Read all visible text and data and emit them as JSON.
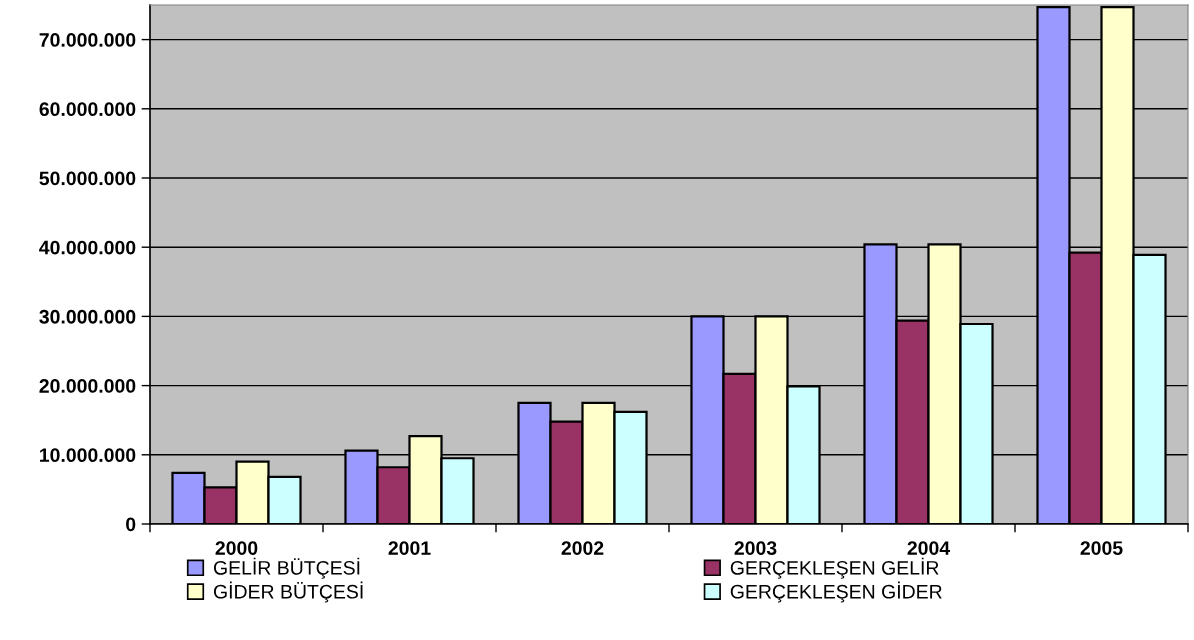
{
  "chart_data": {
    "type": "bar",
    "categories": [
      "2000",
      "2001",
      "2002",
      "2003",
      "2004",
      "2005"
    ],
    "series": [
      {
        "name": "GELİR BÜTÇESİ",
        "color": "#9999ff",
        "values": [
          7400000,
          10600000,
          17500000,
          30000000,
          40400000,
          74700000
        ]
      },
      {
        "name": "GERÇEKLEŞEN GELİR",
        "color": "#993366",
        "values": [
          5300000,
          8200000,
          14800000,
          21700000,
          29400000,
          39200000
        ]
      },
      {
        "name": "GİDER BÜTÇESİ",
        "color": "#ffffcc",
        "values": [
          9000000,
          12700000,
          17500000,
          30000000,
          40400000,
          74700000
        ]
      },
      {
        "name": "GERÇEKLEŞEN GİDER",
        "color": "#ccffff",
        "values": [
          6800000,
          9500000,
          16200000,
          19900000,
          28900000,
          38900000
        ]
      }
    ],
    "ylim": [
      0,
      75000000
    ],
    "yticks": [
      0,
      {
        "value": 10000000,
        "label": "10.000.000"
      },
      {
        "value": 20000000,
        "label": "20.000.000"
      },
      {
        "value": 30000000,
        "label": "30.000.000"
      },
      {
        "value": 40000000,
        "label": "40.000.000"
      },
      {
        "value": 50000000,
        "label": "50.000.000"
      },
      {
        "value": 60000000,
        "label": "60.000.000"
      },
      {
        "value": 70000000,
        "label": "70.000.000"
      }
    ],
    "grid": "y",
    "legend": "bottom"
  }
}
